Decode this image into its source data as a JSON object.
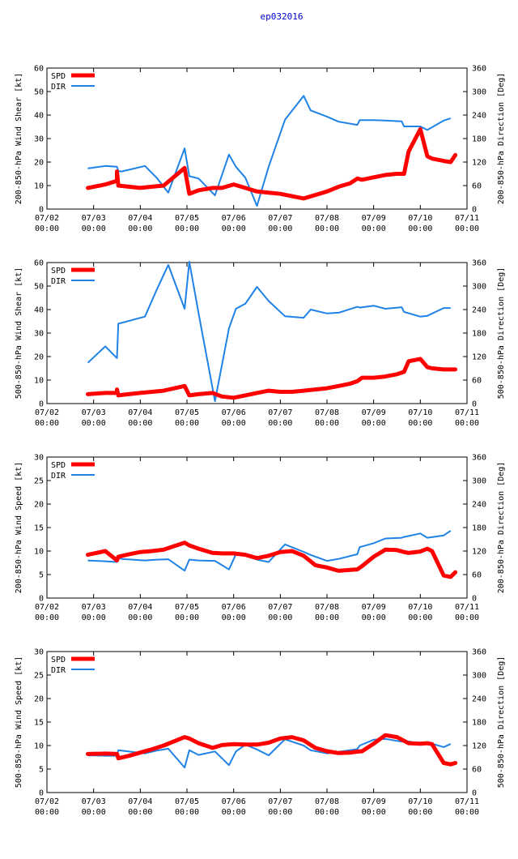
{
  "title": "ep032016",
  "colors": {
    "spd": "#ff0000",
    "dir": "#1e82e6",
    "title": "#0000cc",
    "axis": "#000000",
    "grid": "#000000"
  },
  "x_ticks": [
    "07/02\n00:00",
    "07/03\n00:00",
    "07/04\n00:00",
    "07/05\n00:00",
    "07/06\n00:00",
    "07/07\n00:00",
    "07/08\n00:00",
    "07/09\n00:00",
    "07/10\n00:00",
    "07/11\n00:00"
  ],
  "chart_data": [
    {
      "type": "line",
      "ylabel": "200-850-hPa Wind Shear [kt]",
      "y2label": "200-850-hPa Direction [Deg]",
      "ylim": [
        0,
        60
      ],
      "yticks": [
        0,
        10,
        20,
        30,
        40,
        50,
        60
      ],
      "y2lim": [
        0,
        360
      ],
      "y2ticks": [
        0,
        60,
        120,
        180,
        240,
        300,
        360
      ],
      "xlim": [
        0,
        9
      ],
      "legend": [
        "SPD",
        "DIR"
      ],
      "series": [
        {
          "name": "SPD",
          "axis": "left",
          "x": [
            0.875,
            1.25,
            1.5,
            1.5,
            1.53,
            1.75,
            2.0,
            2.25,
            2.5,
            2.95,
            3.05,
            3.25,
            3.55,
            3.75,
            4.0,
            4.25,
            4.5,
            4.75,
            5.0,
            5.25,
            5.5,
            5.75,
            6.0,
            6.25,
            6.5,
            6.65,
            6.75,
            7.0,
            7.25,
            7.5,
            7.65,
            7.75,
            8.0,
            8.15,
            8.25,
            8.5,
            8.65,
            8.75
          ],
          "values": [
            9,
            10.5,
            12,
            16,
            10,
            9.5,
            9,
            9.5,
            10,
            17.5,
            6.5,
            8,
            9,
            9,
            10.5,
            9,
            7.5,
            7,
            6.5,
            5.5,
            4.5,
            6,
            7.5,
            9.5,
            11,
            13,
            12.5,
            13.5,
            14.5,
            15,
            15,
            24.5,
            34,
            22.5,
            21.5,
            20.5,
            20,
            23
          ]
        },
        {
          "name": "DIR",
          "axis": "right",
          "x": [
            0.875,
            1.25,
            1.5,
            1.53,
            1.6,
            2.1,
            2.35,
            2.6,
            2.95,
            3.05,
            3.25,
            3.6,
            3.9,
            4.05,
            4.25,
            4.5,
            4.75,
            5.1,
            5.5,
            5.65,
            6.0,
            6.25,
            6.65,
            6.7,
            7.0,
            7.25,
            7.6,
            7.65,
            8.0,
            8.15,
            8.5,
            8.65
          ],
          "values": [
            104,
            110,
            108,
            97,
            96,
            110,
            80,
            42,
            155,
            84,
            78,
            35,
            139,
            108,
            80,
            8,
            108,
            228,
            289,
            252,
            236,
            223,
            215,
            227,
            227,
            226,
            224,
            211,
            211,
            202,
            226,
            232
          ]
        }
      ]
    },
    {
      "type": "line",
      "ylabel": "500-850-hPa Wind Shear [kt]",
      "y2label": "500-850-hPa Direction [Deg]",
      "ylim": [
        0,
        60
      ],
      "yticks": [
        0,
        10,
        20,
        30,
        40,
        50,
        60
      ],
      "y2lim": [
        0,
        360
      ],
      "y2ticks": [
        0,
        60,
        120,
        180,
        240,
        300,
        360
      ],
      "xlim": [
        0,
        9
      ],
      "legend": [
        "SPD",
        "DIR"
      ],
      "series": [
        {
          "name": "SPD",
          "axis": "left",
          "x": [
            0.875,
            1.25,
            1.5,
            1.5,
            1.53,
            1.75,
            2.0,
            2.25,
            2.5,
            2.95,
            3.05,
            3.25,
            3.55,
            3.75,
            4.0,
            4.25,
            4.5,
            4.75,
            5.0,
            5.25,
            5.5,
            5.75,
            6.0,
            6.25,
            6.5,
            6.65,
            6.75,
            7.0,
            7.25,
            7.5,
            7.65,
            7.75,
            8.0,
            8.15,
            8.25,
            8.5,
            8.65,
            8.75
          ],
          "values": [
            4,
            4.5,
            4.5,
            6,
            3.5,
            4,
            4.5,
            5,
            5.5,
            7.5,
            3.5,
            4,
            4.5,
            3,
            2.5,
            3.5,
            4.5,
            5.5,
            5,
            5,
            5.5,
            6,
            6.5,
            7.5,
            8.5,
            9.5,
            11,
            11,
            11.5,
            12.5,
            13.5,
            18,
            19,
            15.5,
            15,
            14.5,
            14.5,
            14.5
          ]
        },
        {
          "name": "DIR",
          "axis": "right",
          "x": [
            0.875,
            1.25,
            1.5,
            1.53,
            1.6,
            2.1,
            2.35,
            2.6,
            2.95,
            3.05,
            3.25,
            3.6,
            3.9,
            4.05,
            4.25,
            4.5,
            4.75,
            5.1,
            5.5,
            5.65,
            6.0,
            6.25,
            6.65,
            6.7,
            7.0,
            7.25,
            7.6,
            7.65,
            8.0,
            8.15,
            8.5,
            8.65
          ],
          "values": [
            104,
            146,
            116,
            204,
            206,
            222,
            290,
            354,
            242,
            362,
            230,
            6,
            192,
            242,
            255,
            298,
            262,
            223,
            219,
            240,
            230,
            232,
            247,
            245,
            250,
            242,
            246,
            234,
            222,
            224,
            244,
            244
          ]
        }
      ]
    },
    {
      "type": "line",
      "ylabel": "200-850-hPa Wind Speed [kt]",
      "y2label": "200-850-hPa Direction [Deg]",
      "ylim": [
        0,
        30
      ],
      "yticks": [
        0,
        5,
        10,
        15,
        20,
        25,
        30
      ],
      "y2lim": [
        0,
        360
      ],
      "y2ticks": [
        0,
        60,
        120,
        180,
        240,
        300,
        360
      ],
      "xlim": [
        0,
        9
      ],
      "legend": [
        "SPD",
        "DIR"
      ],
      "series": [
        {
          "name": "SPD",
          "axis": "left",
          "x": [
            0.875,
            1.25,
            1.5,
            1.53,
            1.75,
            2.0,
            2.25,
            2.5,
            2.95,
            3.05,
            3.25,
            3.55,
            3.75,
            4.0,
            4.25,
            4.5,
            4.75,
            5.0,
            5.25,
            5.5,
            5.75,
            6.0,
            6.25,
            6.5,
            6.65,
            6.75,
            7.0,
            7.25,
            7.5,
            7.65,
            7.75,
            8.0,
            8.15,
            8.25,
            8.5,
            8.65,
            8.75
          ],
          "values": [
            9.2,
            10,
            8,
            8.8,
            9.3,
            9.8,
            10,
            10.3,
            11.8,
            11.2,
            10.5,
            9.6,
            9.5,
            9.5,
            9.2,
            8.5,
            9,
            9.8,
            10,
            9,
            7,
            6.5,
            5.8,
            6,
            6.1,
            6.8,
            8.8,
            10.3,
            10.2,
            9.8,
            9.6,
            9.9,
            10.5,
            10,
            4.8,
            4.5,
            5.5
          ]
        },
        {
          "name": "DIR",
          "axis": "right",
          "x": [
            0.875,
            1.25,
            1.5,
            1.53,
            1.6,
            2.1,
            2.35,
            2.6,
            2.95,
            3.05,
            3.25,
            3.6,
            3.9,
            4.05,
            4.25,
            4.5,
            4.75,
            5.1,
            5.5,
            5.65,
            6.0,
            6.25,
            6.65,
            6.7,
            7.0,
            7.25,
            7.6,
            7.65,
            8.0,
            8.15,
            8.5,
            8.65
          ],
          "values": [
            96,
            94,
            92,
            104,
            100,
            96,
            98,
            99,
            70,
            98,
            96,
            95,
            73,
            112,
            108,
            98,
            92,
            137,
            118,
            110,
            95,
            100,
            112,
            130,
            140,
            152,
            154,
            156,
            165,
            154,
            160,
            172
          ]
        }
      ]
    },
    {
      "type": "line",
      "ylabel": "500-850-hPa Wind Speed [kt]",
      "y2label": "500-850-hPa Direction [Deg]",
      "ylim": [
        0,
        30
      ],
      "yticks": [
        0,
        5,
        10,
        15,
        20,
        25,
        30
      ],
      "y2lim": [
        0,
        360
      ],
      "y2ticks": [
        0,
        60,
        120,
        180,
        240,
        300,
        360
      ],
      "xlim": [
        0,
        9
      ],
      "legend": [
        "SPD",
        "DIR"
      ],
      "series": [
        {
          "name": "SPD",
          "axis": "left",
          "x": [
            0.875,
            1.25,
            1.5,
            1.53,
            1.75,
            2.0,
            2.25,
            2.5,
            2.95,
            3.05,
            3.25,
            3.55,
            3.75,
            4.0,
            4.25,
            4.5,
            4.75,
            5.0,
            5.25,
            5.5,
            5.75,
            6.0,
            6.25,
            6.5,
            6.65,
            6.75,
            7.0,
            7.25,
            7.5,
            7.65,
            7.75,
            8.0,
            8.15,
            8.25,
            8.5,
            8.65,
            8.75
          ],
          "values": [
            8.2,
            8.3,
            8.2,
            7.3,
            7.8,
            8.5,
            9.2,
            10,
            11.8,
            11.5,
            10.5,
            9.5,
            10.1,
            10.3,
            10.2,
            10.2,
            10.6,
            11.5,
            11.8,
            11.1,
            9.5,
            8.8,
            8.4,
            8.5,
            8.7,
            8.8,
            10.4,
            12.2,
            11.8,
            11,
            10.5,
            10.4,
            10.5,
            10.3,
            6.3,
            6,
            6.3
          ]
        },
        {
          "name": "DIR",
          "axis": "right",
          "x": [
            0.875,
            1.25,
            1.5,
            1.53,
            1.6,
            2.1,
            2.35,
            2.6,
            2.95,
            3.05,
            3.25,
            3.6,
            3.9,
            4.05,
            4.25,
            4.5,
            4.75,
            5.1,
            5.5,
            5.65,
            6.0,
            6.25,
            6.65,
            6.7,
            7.0,
            7.25,
            7.6,
            7.65,
            8.0,
            8.15,
            8.5,
            8.65
          ],
          "values": [
            95,
            94,
            94,
            108,
            107,
            100,
            107,
            112,
            64,
            108,
            96,
            105,
            70,
            105,
            122,
            110,
            95,
            136,
            120,
            108,
            100,
            104,
            111,
            120,
            135,
            137,
            130,
            132,
            126,
            128,
            116,
            124
          ]
        }
      ]
    }
  ]
}
